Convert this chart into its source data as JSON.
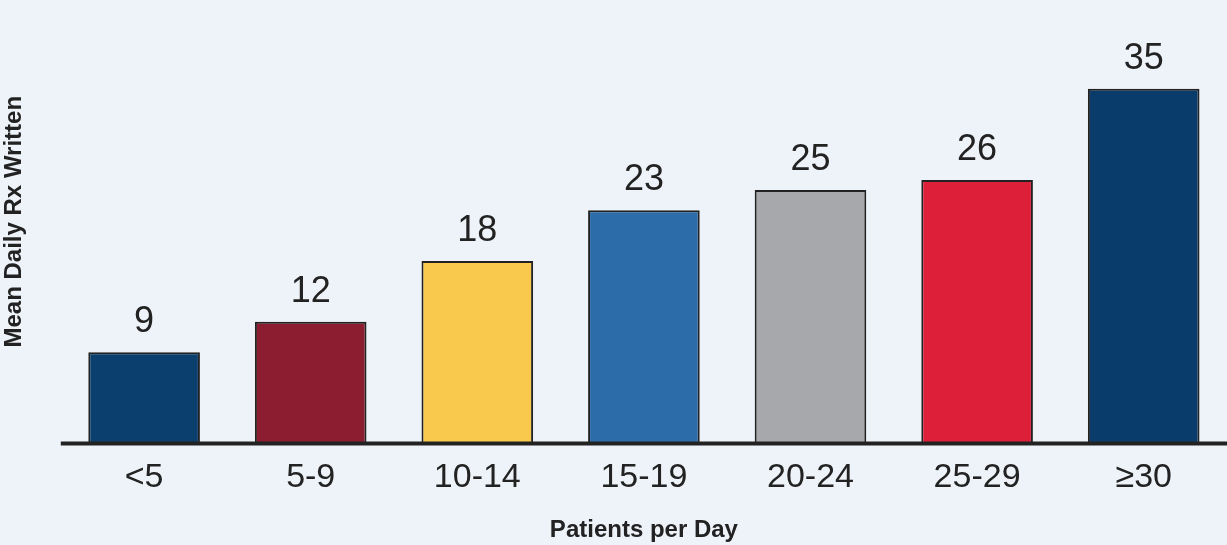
{
  "chart_data": {
    "type": "bar",
    "xlabel": "Patients per Day",
    "ylabel": "Mean Daily Rx Written",
    "categories": [
      "<5",
      "5-9",
      "10-14",
      "15-19",
      "20-24",
      "25-29",
      "≥30"
    ],
    "values": [
      9,
      12,
      18,
      23,
      25,
      26,
      35
    ],
    "colors": [
      "#0b3f6e",
      "#8c1c30",
      "#f8c94c",
      "#2b6ca9",
      "#a7a8ac",
      "#dd1f3a",
      "#0a3c6b"
    ],
    "data_labels": true,
    "grid": false,
    "legend": false
  }
}
